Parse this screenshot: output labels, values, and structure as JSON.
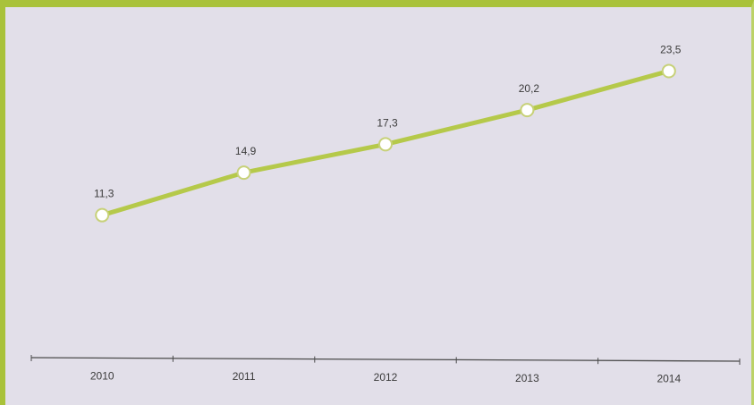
{
  "chart_data": {
    "type": "line",
    "categories": [
      "2010",
      "2011",
      "2012",
      "2013",
      "2014"
    ],
    "series": [
      {
        "values": [
          11.3,
          14.9,
          17.3,
          20.2,
          23.5
        ]
      }
    ],
    "data_labels": [
      "11,3",
      "14,9",
      "17,3",
      "20,2",
      "23,5"
    ],
    "title": "",
    "xlabel": "",
    "ylabel": "",
    "ylim": [
      0,
      28
    ],
    "grid": false,
    "line_color": "#b5c94a",
    "marker_fill": "#ffffff",
    "background_color": "#e2dfe9",
    "border_color": "#a9c23a"
  }
}
